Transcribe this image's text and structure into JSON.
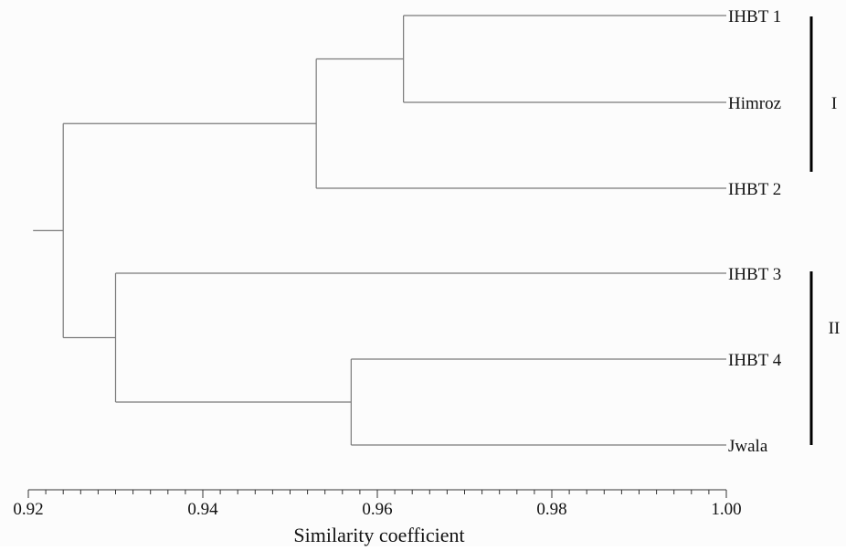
{
  "chart_data": {
    "type": "dendrogram",
    "xlabel": "Similarity coefficient",
    "xlim": [
      0.92,
      1.0
    ],
    "x_ticks": [
      "0.92",
      "0.94",
      "0.96",
      "0.98",
      "1.00"
    ],
    "leaves": [
      "IHBT 1",
      "Himroz",
      "IHBT 2",
      "IHBT 3",
      "IHBT 4",
      "Jwala"
    ],
    "merges": [
      {
        "children": [
          "IHBT 1",
          "Himroz"
        ],
        "similarity": 0.963
      },
      {
        "children": [
          "IHBT 1+Himroz",
          "IHBT 2"
        ],
        "similarity": 0.953
      },
      {
        "children": [
          "IHBT 4",
          "Jwala"
        ],
        "similarity": 0.957
      },
      {
        "children": [
          "IHBT 3",
          "IHBT 4+Jwala"
        ],
        "similarity": 0.93
      },
      {
        "children": [
          "cluster I",
          "cluster II"
        ],
        "similarity": 0.924
      }
    ],
    "clusters": [
      {
        "label": "I",
        "members": [
          "IHBT 1",
          "Himroz",
          "IHBT 2"
        ]
      },
      {
        "label": "II",
        "members": [
          "IHBT 3",
          "IHBT 4",
          "Jwala"
        ]
      }
    ]
  }
}
